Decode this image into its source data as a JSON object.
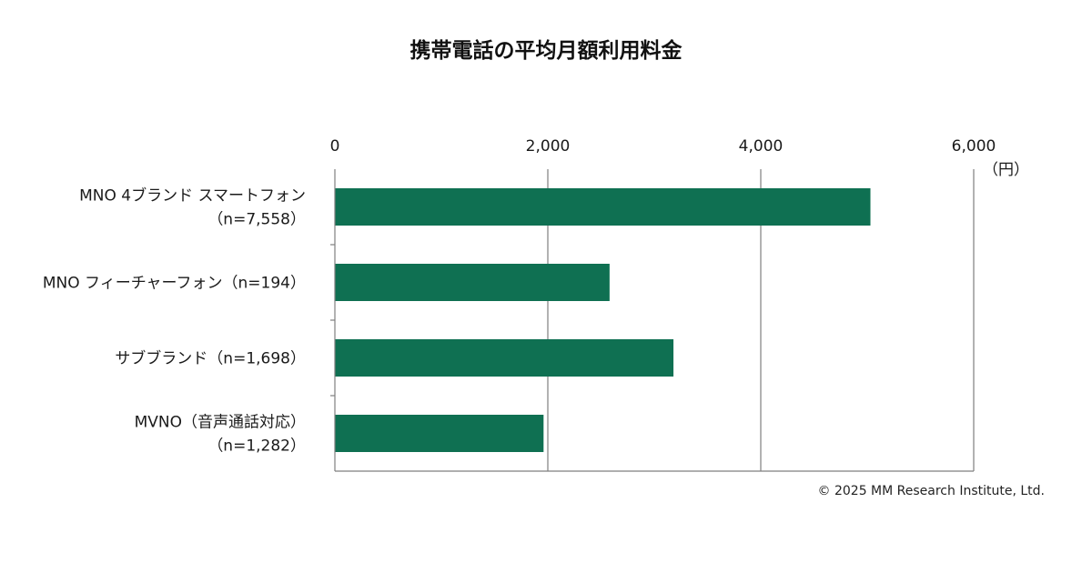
{
  "chart_data": {
    "type": "bar",
    "orientation": "horizontal",
    "title": "携帯電話の平均月額利用料金",
    "unit": "（円）",
    "categories": [
      [
        "MNO 4ブランド スマートフォン",
        "（n=7,558）"
      ],
      [
        "MNO フィーチャーフォン（n=194）"
      ],
      [
        "サブブランド（n=1,698）"
      ],
      [
        "MVNO（音声通話対応）",
        "（n=1,282）"
      ]
    ],
    "values": [
      5030,
      2580,
      3180,
      1960
    ],
    "xlim": [
      0,
      6000
    ],
    "xticks": [
      0,
      2000,
      4000,
      6000
    ],
    "xtick_labels": [
      "0",
      "2,000",
      "4,000",
      "6,000"
    ],
    "tick_position": "top",
    "grid": true,
    "bar_color": "#0f7052",
    "grid_color": "#7f7f7f"
  },
  "footer": {
    "copyright": "© 2025 MM Research Institute, Ltd."
  }
}
